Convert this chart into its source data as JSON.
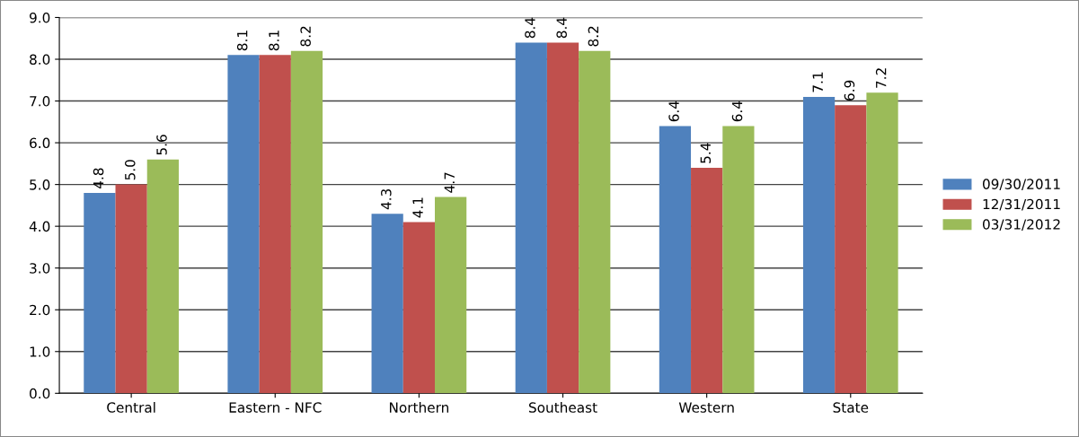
{
  "chart_data": {
    "type": "bar",
    "categories": [
      "Central",
      "Eastern - NFC",
      "Northern",
      "Southeast",
      "Western",
      "State"
    ],
    "series": [
      {
        "name": "09/30/2011",
        "color": "#4f81bd",
        "values": [
          4.8,
          8.1,
          4.3,
          8.4,
          6.4,
          7.1
        ],
        "value_labels": [
          "4.8",
          "8.1",
          "4.3",
          "8.4",
          "6.4",
          "7.1"
        ]
      },
      {
        "name": "12/31/2011",
        "color": "#c0504d",
        "values": [
          5.0,
          8.1,
          4.1,
          8.4,
          5.4,
          6.9
        ],
        "value_labels": [
          "5.0",
          "8.1",
          "4.1",
          "8.4",
          "5.4",
          "6.9"
        ]
      },
      {
        "name": "03/31/2012",
        "color": "#9bbb59",
        "values": [
          5.6,
          8.2,
          4.7,
          8.2,
          6.4,
          7.2
        ],
        "value_labels": [
          "5.6",
          "8.2",
          "4.7",
          "8.2",
          "6.4",
          "7.2"
        ]
      }
    ],
    "ylim": [
      0,
      9
    ],
    "yticks": [
      {
        "value": 0,
        "label": "0.0"
      },
      {
        "value": 1,
        "label": "1.0"
      },
      {
        "value": 2,
        "label": "2.0"
      },
      {
        "value": 3,
        "label": "3.0"
      },
      {
        "value": 4,
        "label": "4.0"
      },
      {
        "value": 5,
        "label": "5.0"
      },
      {
        "value": 6,
        "label": "6.0"
      },
      {
        "value": 7,
        "label": "7.0"
      },
      {
        "value": 8,
        "label": "8.0"
      },
      {
        "value": 9,
        "label": "9.0"
      }
    ],
    "grid": "y",
    "legend": "right"
  }
}
